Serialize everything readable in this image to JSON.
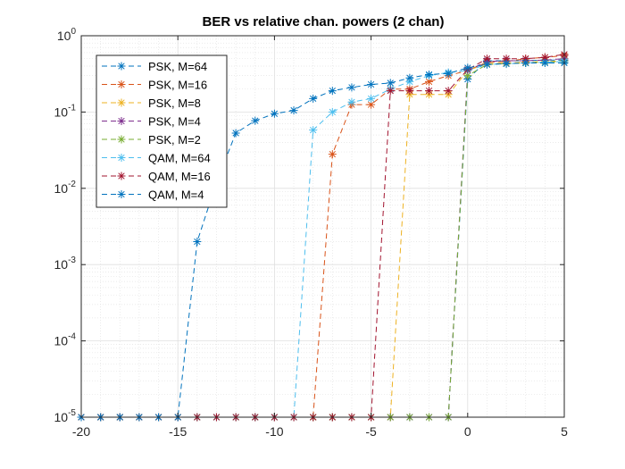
{
  "chart_data": {
    "type": "line",
    "title": "BER vs relative chan. powers (2 chan)",
    "xlabel": "",
    "ylabel": "",
    "xlim": [
      -20,
      5
    ],
    "ylim": [
      1e-05,
      1
    ],
    "y_scale": "log",
    "grid": true,
    "minor_grid": true,
    "legend_position": "top-left",
    "marker": "asterisk",
    "line_style": "dashed",
    "x_ticks": [
      {
        "value": -20,
        "label": "-20"
      },
      {
        "value": -15,
        "label": "-15"
      },
      {
        "value": -10,
        "label": "-10"
      },
      {
        "value": -5,
        "label": "-5"
      },
      {
        "value": 0,
        "label": "0"
      },
      {
        "value": 5,
        "label": "5"
      }
    ],
    "y_ticks": [
      {
        "value": 1e-05,
        "base": "10",
        "exp": "-5"
      },
      {
        "value": 0.0001,
        "base": "10",
        "exp": "-4"
      },
      {
        "value": 0.001,
        "base": "10",
        "exp": "-3"
      },
      {
        "value": 0.01,
        "base": "10",
        "exp": "-2"
      },
      {
        "value": 0.1,
        "base": "10",
        "exp": "-1"
      },
      {
        "value": 1,
        "base": "10",
        "exp": "0"
      }
    ],
    "x": [
      -20,
      -19,
      -18,
      -17,
      -16,
      -15,
      -14,
      -13,
      -12,
      -11,
      -10,
      -9,
      -8,
      -7,
      -6,
      -5,
      -4,
      -3,
      -2,
      -1,
      0,
      1,
      2,
      3,
      4,
      5
    ],
    "series": [
      {
        "name": "PSK, M=64",
        "color": "#0072BD",
        "values": [
          1e-05,
          1e-05,
          1e-05,
          1e-05,
          1e-05,
          1e-05,
          1e-05,
          1e-05,
          1e-05,
          1e-05,
          1e-05,
          1e-05,
          1e-05,
          1e-05,
          1e-05,
          1e-05,
          1e-05,
          1e-05,
          1e-05,
          1e-05,
          0.27,
          0.47,
          0.47,
          0.47,
          0.48,
          0.48
        ]
      },
      {
        "name": "PSK, M=16",
        "color": "#D95319",
        "values": [
          1e-05,
          1e-05,
          1e-05,
          1e-05,
          1e-05,
          1e-05,
          1e-05,
          1e-05,
          1e-05,
          1e-05,
          1e-05,
          1e-05,
          1e-05,
          0.028,
          0.125,
          0.125,
          0.2,
          0.2,
          0.25,
          0.3,
          0.35,
          0.45,
          0.46,
          0.5,
          0.52,
          0.55
        ]
      },
      {
        "name": "PSK, M=8",
        "color": "#EDB120",
        "values": [
          1e-05,
          1e-05,
          1e-05,
          1e-05,
          1e-05,
          1e-05,
          1e-05,
          1e-05,
          1e-05,
          1e-05,
          1e-05,
          1e-05,
          1e-05,
          1e-05,
          1e-05,
          1e-05,
          1e-05,
          0.17,
          0.17,
          0.17,
          0.35,
          0.43,
          0.44,
          0.45,
          0.46,
          0.47
        ]
      },
      {
        "name": "PSK, M=4",
        "color": "#7E2F8E",
        "values": [
          1e-05,
          1e-05,
          1e-05,
          1e-05,
          1e-05,
          1e-05,
          1e-05,
          1e-05,
          1e-05,
          1e-05,
          1e-05,
          1e-05,
          1e-05,
          1e-05,
          1e-05,
          1e-05,
          1e-05,
          1e-05,
          1e-05,
          1e-05,
          0.35,
          0.46,
          0.47,
          0.47,
          0.48,
          0.5
        ]
      },
      {
        "name": "PSK, M=2",
        "color": "#77AC30",
        "values": [
          1e-05,
          1e-05,
          1e-05,
          1e-05,
          1e-05,
          1e-05,
          1e-05,
          1e-05,
          1e-05,
          1e-05,
          1e-05,
          1e-05,
          1e-05,
          1e-05,
          1e-05,
          1e-05,
          1e-05,
          1e-05,
          1e-05,
          1e-05,
          0.3,
          0.42,
          0.43,
          0.44,
          0.45,
          0.46
        ]
      },
      {
        "name": "QAM, M=64",
        "color": "#4DBEEE",
        "values": [
          1e-05,
          1e-05,
          1e-05,
          1e-05,
          1e-05,
          1e-05,
          1e-05,
          1e-05,
          1e-05,
          1e-05,
          1e-05,
          1e-05,
          0.058,
          0.1,
          0.135,
          0.15,
          0.2,
          0.25,
          0.3,
          0.33,
          0.35,
          0.42,
          0.43,
          0.44,
          0.45,
          0.46
        ]
      },
      {
        "name": "QAM, M=16",
        "color": "#A2142F",
        "values": [
          1e-05,
          1e-05,
          1e-05,
          1e-05,
          1e-05,
          1e-05,
          1e-05,
          1e-05,
          1e-05,
          1e-05,
          1e-05,
          1e-05,
          1e-05,
          1e-05,
          1e-05,
          1e-05,
          0.19,
          0.19,
          0.19,
          0.19,
          0.36,
          0.5,
          0.5,
          0.5,
          0.52,
          0.57
        ]
      },
      {
        "name": "QAM, M=4",
        "color": "#0072BD",
        "values": [
          1e-05,
          1e-05,
          1e-05,
          1e-05,
          1e-05,
          1e-05,
          0.002,
          0.012,
          0.053,
          0.077,
          0.095,
          0.105,
          0.15,
          0.19,
          0.21,
          0.23,
          0.24,
          0.28,
          0.31,
          0.32,
          0.38,
          0.42,
          0.43,
          0.44,
          0.44,
          0.44
        ]
      }
    ]
  }
}
